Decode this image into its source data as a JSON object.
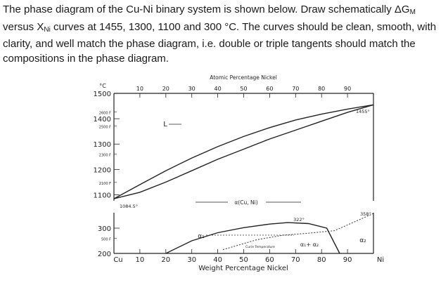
{
  "question": {
    "part1": "The phase diagram of the Cu-Ni binary system is shown below. Draw schematically ΔG",
    "sub1": "M",
    "part2": " versus X",
    "sub2": "Ni",
    "part3": " curves at 1455, 1300, 1100 and 300 °C. The curves should be clean, smooth, with clarity, and well match the phase diagram, i.e. double or triple tangents should match the compositions in the phase diagram."
  },
  "chart_data": {
    "type": "line",
    "top_axis": {
      "label": "Atomic Percentage Nickel",
      "ticks": [
        "10",
        "20",
        "30",
        "40",
        "50",
        "60",
        "70",
        "80",
        "90"
      ]
    },
    "bottom_axis": {
      "label": "Weight Percentage Nickel",
      "ticks": [
        "10",
        "20",
        "30",
        "40",
        "50",
        "60",
        "70",
        "80",
        "90"
      ],
      "end_left": "Cu",
      "end_right": "Ni",
      "xlim": [
        0,
        100
      ]
    },
    "left_axis": {
      "unit_c": "°C",
      "unit_f": "°F",
      "celsius_ticks": [
        "1500",
        "1400",
        "1300",
        "1200",
        "1100",
        "300",
        "200"
      ],
      "fahrenheit_ticks": [
        "2600 F",
        "2500 F",
        "2300 F",
        "2100 F",
        "500 F"
      ],
      "ylim_upper": [
        1083,
        1500
      ],
      "ylim_lower": [
        200,
        360
      ]
    },
    "liquidus_x": [
      0,
      10,
      20,
      30,
      40,
      50,
      60,
      70,
      80,
      90,
      100
    ],
    "liquidus_y": [
      1084.5,
      1140,
      1195,
      1245,
      1290,
      1330,
      1365,
      1395,
      1418,
      1438,
      1455
    ],
    "solidus_x": [
      0,
      10,
      20,
      30,
      40,
      50,
      60,
      70,
      80,
      90,
      100
    ],
    "solidus_y": [
      1084.5,
      1110,
      1150,
      1195,
      1240,
      1280,
      1320,
      1355,
      1390,
      1425,
      1455
    ],
    "miscibility_x": [
      20,
      30,
      40,
      50,
      60,
      67,
      75,
      82,
      87
    ],
    "miscibility_y": [
      200,
      250,
      282,
      302,
      316,
      322,
      318,
      300,
      200
    ],
    "curie_x": [
      42,
      55,
      65,
      75,
      85,
      100
    ],
    "curie_y": [
      215,
      254,
      272,
      280,
      290,
      358
    ],
    "labels": {
      "L": "L",
      "alpha": "α(Cu, Ni)",
      "alpha1": "α₁",
      "two_phase": "α₁+ α₂",
      "alpha2": "α₂",
      "curie": "Curie Temperature",
      "t_cu": "1084.5°",
      "t_ni": "1455°",
      "t_top": "322°",
      "t_magnetic": "358°"
    }
  }
}
